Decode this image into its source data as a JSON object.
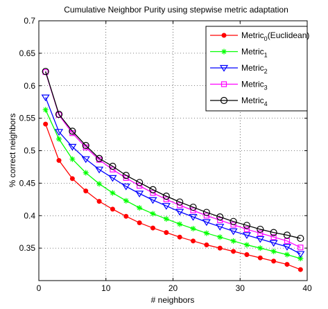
{
  "chart_data": {
    "type": "line",
    "title": "Cumulative Neighbor Purity using stepwise metric adaptation",
    "xlabel": "# neighbors",
    "ylabel": "% correct neighbors",
    "xlim": [
      0,
      40
    ],
    "ylim": [
      0.3,
      0.7
    ],
    "xticks": [
      0,
      10,
      20,
      30,
      40
    ],
    "yticks": [
      0.35,
      0.4,
      0.45,
      0.5,
      0.55,
      0.6,
      0.65,
      0.7
    ],
    "grid": true,
    "legend_position": "top-right",
    "x": [
      1,
      3,
      5,
      7,
      9,
      11,
      13,
      15,
      17,
      19,
      21,
      23,
      25,
      27,
      29,
      31,
      33,
      35,
      37,
      39
    ],
    "series": [
      {
        "name": "Metric",
        "subscript": "0",
        "suffix": "(Euclidean)",
        "color": "#ff0000",
        "marker": "dot",
        "values": [
          0.541,
          0.485,
          0.457,
          0.438,
          0.422,
          0.41,
          0.399,
          0.389,
          0.381,
          0.374,
          0.367,
          0.361,
          0.355,
          0.35,
          0.345,
          0.34,
          0.335,
          0.33,
          0.325,
          0.317
        ]
      },
      {
        "name": "Metric",
        "subscript": "1",
        "suffix": "",
        "color": "#00ff00",
        "marker": "star",
        "values": [
          0.563,
          0.518,
          0.487,
          0.466,
          0.449,
          0.435,
          0.423,
          0.412,
          0.403,
          0.395,
          0.387,
          0.38,
          0.373,
          0.367,
          0.361,
          0.355,
          0.35,
          0.345,
          0.34,
          0.334
        ]
      },
      {
        "name": "Metric",
        "subscript": "2",
        "suffix": "",
        "color": "#0000ff",
        "marker": "triangle-down",
        "values": [
          0.582,
          0.529,
          0.506,
          0.487,
          0.471,
          0.458,
          0.445,
          0.434,
          0.424,
          0.415,
          0.406,
          0.398,
          0.39,
          0.383,
          0.376,
          0.37,
          0.364,
          0.358,
          0.352,
          0.341
        ]
      },
      {
        "name": "Metric",
        "subscript": "3",
        "suffix": "",
        "color": "#ff00ff",
        "marker": "square",
        "values": [
          0.621,
          0.555,
          0.527,
          0.505,
          0.486,
          0.471,
          0.458,
          0.446,
          0.435,
          0.425,
          0.416,
          0.408,
          0.4,
          0.393,
          0.386,
          0.379,
          0.373,
          0.367,
          0.361,
          0.351
        ]
      },
      {
        "name": "Metric",
        "subscript": "4",
        "suffix": "",
        "color": "#000000",
        "marker": "circle",
        "values": [
          0.622,
          0.556,
          0.53,
          0.508,
          0.488,
          0.476,
          0.462,
          0.451,
          0.44,
          0.43,
          0.421,
          0.413,
          0.405,
          0.398,
          0.391,
          0.385,
          0.379,
          0.374,
          0.37,
          0.365
        ]
      }
    ]
  }
}
